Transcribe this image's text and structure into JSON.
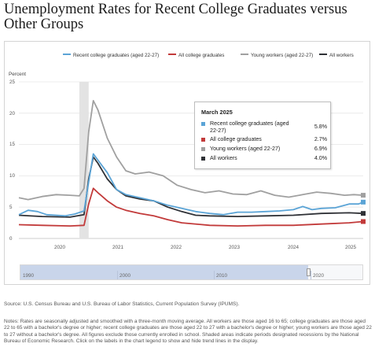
{
  "title": "Unemployment Rates for Recent College Graduates versus Other Groups",
  "legend": [
    {
      "label": "Recent college graduates (aged 22-27)",
      "color": "#5ba4d6"
    },
    {
      "label": "All college graduates",
      "color": "#c23a3a"
    },
    {
      "label": "Young workers (aged 22-27)",
      "color": "#a0a0a0"
    },
    {
      "label": "All workers",
      "color": "#2f3136"
    }
  ],
  "tooltip": {
    "title": "March 2025",
    "rows": [
      {
        "label": "Recent college graduates (aged 22-27)",
        "value": "5.8%",
        "color": "#5ba4d6"
      },
      {
        "label": "All college graduates",
        "value": "2.7%",
        "color": "#c23a3a"
      },
      {
        "label": "Young workers (aged 22-27)",
        "value": "6.9%",
        "color": "#a0a0a0"
      },
      {
        "label": "All workers",
        "value": "4.0%",
        "color": "#2f3136"
      }
    ]
  },
  "navigator": {
    "labels": [
      "1990",
      "2000",
      "2010",
      "2020"
    ]
  },
  "source": "Source: U.S. Census Bureau and U.S. Bureau of Labor Statistics, Current Population Survey (IPUMS).",
  "notes": "Notes: Rates are seasonally adjusted and smoothed with a three-month moving average. All workers are those aged 16 to 65; college graduates are those aged 22 to 65 with a bachelor's degree or higher; recent college graduates are those aged 22 to 27 with a bachelor's degree or higher; young workers are those aged 22 to 27 without a bachelor's degree. All figures exclude those currently enrolled in school. Shaded areas indicate periods designated recessions by the National Bureau of Economic Research. Click on the labels in the chart legend to show and hide trend lines in the display.",
  "chart_data": {
    "type": "line",
    "ylabel": "Percent",
    "ylim": [
      0,
      25
    ],
    "yticks": [
      "0",
      "5",
      "10",
      "15",
      "20",
      "25"
    ],
    "xlim": [
      "2019-01",
      "2025-03"
    ],
    "xticks": [
      "2020",
      "2021",
      "2022",
      "2023",
      "2024",
      "2025"
    ],
    "grid": true,
    "legend_position": "top",
    "recessions": [
      {
        "start": "2020-02",
        "end": "2020-04"
      }
    ],
    "series": [
      {
        "name": "Recent college graduates (aged 22-27)",
        "color": "#5ba4d6",
        "points": [
          [
            "2019-01",
            3.8
          ],
          [
            "2019-03",
            4.5
          ],
          [
            "2019-05",
            4.3
          ],
          [
            "2019-07",
            3.8
          ],
          [
            "2019-09",
            3.7
          ],
          [
            "2019-11",
            3.6
          ],
          [
            "2020-01",
            3.9
          ],
          [
            "2020-03",
            4.4
          ],
          [
            "2020-04",
            9.0
          ],
          [
            "2020-05",
            13.5
          ],
          [
            "2020-06",
            12.5
          ],
          [
            "2020-08",
            10.5
          ],
          [
            "2020-10",
            7.8
          ],
          [
            "2020-12",
            7.0
          ],
          [
            "2021-03",
            6.5
          ],
          [
            "2021-06",
            6.0
          ],
          [
            "2021-09",
            5.3
          ],
          [
            "2021-12",
            4.8
          ],
          [
            "2022-03",
            4.3
          ],
          [
            "2022-06",
            4.0
          ],
          [
            "2022-09",
            3.8
          ],
          [
            "2022-12",
            4.2
          ],
          [
            "2023-03",
            4.2
          ],
          [
            "2023-06",
            4.3
          ],
          [
            "2023-09",
            4.4
          ],
          [
            "2023-12",
            4.6
          ],
          [
            "2024-02",
            5.1
          ],
          [
            "2024-04",
            4.6
          ],
          [
            "2024-06",
            4.8
          ],
          [
            "2024-09",
            4.9
          ],
          [
            "2024-12",
            5.5
          ],
          [
            "2025-02",
            5.5
          ],
          [
            "2025-03",
            5.8
          ]
        ]
      },
      {
        "name": "All college graduates",
        "color": "#c23a3a",
        "points": [
          [
            "2019-01",
            2.2
          ],
          [
            "2019-06",
            2.1
          ],
          [
            "2019-12",
            2.0
          ],
          [
            "2020-03",
            2.1
          ],
          [
            "2020-04",
            5.5
          ],
          [
            "2020-05",
            8.0
          ],
          [
            "2020-06",
            7.3
          ],
          [
            "2020-08",
            6.0
          ],
          [
            "2020-10",
            5.0
          ],
          [
            "2020-12",
            4.5
          ],
          [
            "2021-03",
            4.0
          ],
          [
            "2021-06",
            3.6
          ],
          [
            "2021-09",
            3.0
          ],
          [
            "2021-12",
            2.5
          ],
          [
            "2022-06",
            2.1
          ],
          [
            "2022-12",
            2.0
          ],
          [
            "2023-06",
            2.1
          ],
          [
            "2023-12",
            2.1
          ],
          [
            "2024-06",
            2.3
          ],
          [
            "2024-12",
            2.5
          ],
          [
            "2025-03",
            2.7
          ]
        ]
      },
      {
        "name": "Young workers (aged 22-27)",
        "color": "#a0a0a0",
        "points": [
          [
            "2019-01",
            6.5
          ],
          [
            "2019-03",
            6.2
          ],
          [
            "2019-06",
            6.7
          ],
          [
            "2019-09",
            7.0
          ],
          [
            "2019-12",
            6.9
          ],
          [
            "2020-02",
            6.8
          ],
          [
            "2020-03",
            8.0
          ],
          [
            "2020-04",
            17.0
          ],
          [
            "2020-05",
            22.0
          ],
          [
            "2020-06",
            20.5
          ],
          [
            "2020-08",
            16.0
          ],
          [
            "2020-10",
            13.0
          ],
          [
            "2020-12",
            10.8
          ],
          [
            "2021-02",
            10.3
          ],
          [
            "2021-05",
            10.6
          ],
          [
            "2021-08",
            10.0
          ],
          [
            "2021-11",
            8.5
          ],
          [
            "2022-02",
            7.8
          ],
          [
            "2022-05",
            7.3
          ],
          [
            "2022-08",
            7.6
          ],
          [
            "2022-11",
            7.1
          ],
          [
            "2023-02",
            7.0
          ],
          [
            "2023-05",
            7.6
          ],
          [
            "2023-08",
            6.9
          ],
          [
            "2023-11",
            6.6
          ],
          [
            "2024-02",
            7.0
          ],
          [
            "2024-05",
            7.4
          ],
          [
            "2024-08",
            7.2
          ],
          [
            "2024-11",
            6.9
          ],
          [
            "2025-01",
            7.0
          ],
          [
            "2025-03",
            6.9
          ]
        ]
      },
      {
        "name": "All workers",
        "color": "#2f3136",
        "points": [
          [
            "2019-01",
            3.7
          ],
          [
            "2019-06",
            3.5
          ],
          [
            "2019-12",
            3.4
          ],
          [
            "2020-03",
            3.8
          ],
          [
            "2020-04",
            9.5
          ],
          [
            "2020-05",
            13.0
          ],
          [
            "2020-06",
            12.0
          ],
          [
            "2020-08",
            9.5
          ],
          [
            "2020-10",
            7.8
          ],
          [
            "2020-12",
            6.8
          ],
          [
            "2021-03",
            6.3
          ],
          [
            "2021-06",
            6.0
          ],
          [
            "2021-09",
            5.0
          ],
          [
            "2021-12",
            4.3
          ],
          [
            "2022-03",
            3.7
          ],
          [
            "2022-06",
            3.6
          ],
          [
            "2022-12",
            3.5
          ],
          [
            "2023-06",
            3.6
          ],
          [
            "2023-12",
            3.7
          ],
          [
            "2024-06",
            4.0
          ],
          [
            "2024-12",
            4.1
          ],
          [
            "2025-03",
            4.0
          ]
        ]
      }
    ]
  }
}
